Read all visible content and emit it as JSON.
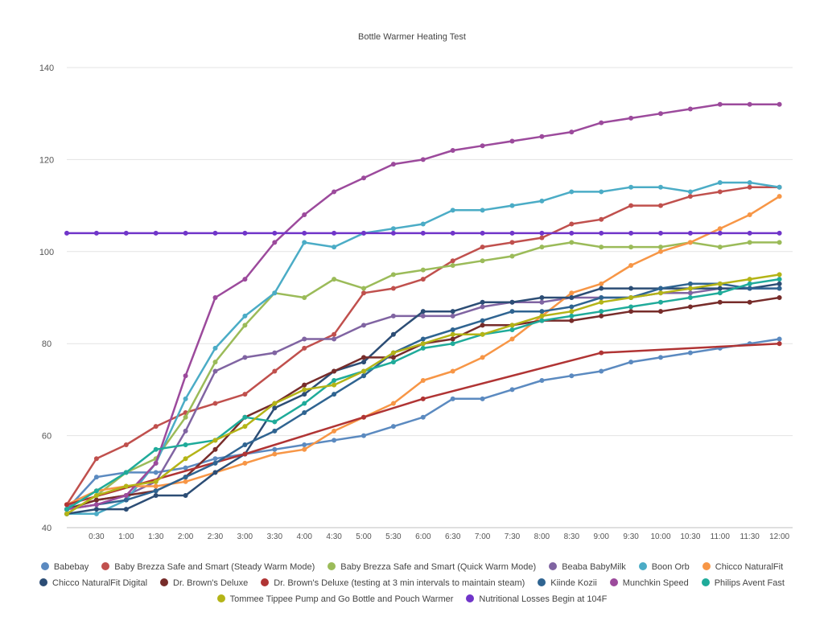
{
  "chart_data": {
    "type": "line",
    "title": "Bottle Warmer Heating Test",
    "xlabel": "",
    "ylabel": "",
    "ylim": [
      40,
      140
    ],
    "yticks": [
      40,
      60,
      80,
      100,
      120,
      140
    ],
    "grid": true,
    "legend_position": "bottom",
    "x": [
      "",
      "0:30",
      "1:00",
      "1:30",
      "2:00",
      "2:30",
      "3:00",
      "3:30",
      "4:00",
      "4:30",
      "5:00",
      "5:30",
      "6:00",
      "6:30",
      "7:00",
      "7:30",
      "8:00",
      "8:30",
      "9:00",
      "9:30",
      "10:00",
      "10:30",
      "11:00",
      "11:30",
      "12:00"
    ],
    "series": [
      {
        "name": "Babebay",
        "color": "#5b8ac0",
        "values": [
          44,
          51,
          52,
          52,
          53,
          55,
          56,
          57,
          58,
          59,
          60,
          62,
          64,
          68,
          68,
          70,
          72,
          73,
          74,
          76,
          77,
          78,
          79,
          80,
          81
        ]
      },
      {
        "name": "Baby Brezza Safe and Smart (Steady Warm Mode)",
        "color": "#c0504d",
        "values": [
          45,
          55,
          58,
          62,
          65,
          67,
          69,
          74,
          79,
          82,
          91,
          92,
          94,
          98,
          101,
          102,
          103,
          106,
          107,
          110,
          110,
          112,
          113,
          114,
          114
        ]
      },
      {
        "name": "Baby Brezza Safe and Smart (Quick Warm Mode)",
        "color": "#9bbb59",
        "values": [
          43,
          47,
          52,
          55,
          64,
          76,
          84,
          91,
          90,
          94,
          92,
          95,
          96,
          97,
          98,
          99,
          101,
          102,
          101,
          101,
          101,
          102,
          101,
          102,
          102
        ]
      },
      {
        "name": "Beaba BabyMilk",
        "color": "#8064a2",
        "values": [
          44,
          46,
          47,
          50,
          61,
          74,
          77,
          78,
          81,
          81,
          84,
          86,
          86,
          86,
          88,
          89,
          89,
          90,
          90,
          90,
          91,
          91,
          92,
          92,
          92
        ]
      },
      {
        "name": "Boon Orb",
        "color": "#4bacc6",
        "values": [
          43,
          43,
          46,
          54,
          68,
          79,
          86,
          91,
          102,
          101,
          104,
          105,
          106,
          109,
          109,
          110,
          111,
          113,
          113,
          114,
          114,
          113,
          115,
          115,
          114
        ]
      },
      {
        "name": "Chicco NaturalFit",
        "color": "#f79646",
        "values": [
          45,
          48,
          49,
          49,
          50,
          52,
          54,
          56,
          57,
          61,
          64,
          67,
          72,
          74,
          77,
          81,
          86,
          91,
          93,
          97,
          100,
          102,
          105,
          108,
          112
        ]
      },
      {
        "name": "Chicco NaturalFit Digital",
        "color": "#2c4d75",
        "values": [
          43,
          44,
          44,
          47,
          47,
          52,
          56,
          66,
          69,
          74,
          76,
          82,
          87,
          87,
          89,
          89,
          90,
          90,
          92,
          92,
          92,
          92,
          92,
          92,
          93
        ]
      },
      {
        "name": "Dr. Brown's Deluxe",
        "color": "#772c2a",
        "values": [
          44,
          46,
          47,
          48,
          51,
          57,
          64,
          67,
          71,
          74,
          77,
          77,
          80,
          81,
          84,
          84,
          85,
          85,
          86,
          87,
          87,
          88,
          89,
          89,
          90
        ]
      },
      {
        "name": "Dr. Brown's Deluxe (testing at 3 min intervals to maintain steam)",
        "color": "#b03434",
        "values": [
          45,
          null,
          null,
          null,
          null,
          null,
          56,
          null,
          null,
          null,
          64,
          null,
          68,
          null,
          null,
          null,
          null,
          null,
          78,
          null,
          null,
          null,
          null,
          null,
          80
        ]
      },
      {
        "name": "Kiinde Kozii",
        "color": "#2f6491",
        "values": [
          44,
          45,
          46,
          48,
          51,
          54,
          58,
          61,
          65,
          69,
          73,
          78,
          81,
          83,
          85,
          87,
          87,
          88,
          90,
          90,
          92,
          93,
          93,
          92,
          92
        ]
      },
      {
        "name": "Munchkin Speed",
        "color": "#9c4a9c",
        "values": [
          44,
          45,
          47,
          54,
          73,
          90,
          94,
          102,
          108,
          113,
          116,
          119,
          120,
          122,
          123,
          124,
          125,
          126,
          128,
          129,
          130,
          131,
          132,
          132,
          132
        ]
      },
      {
        "name": "Philips Avent Fast",
        "color": "#1fab9a",
        "values": [
          44,
          48,
          52,
          57,
          58,
          59,
          64,
          63,
          67,
          72,
          74,
          76,
          79,
          80,
          82,
          83,
          85,
          86,
          87,
          88,
          89,
          90,
          91,
          93,
          94
        ]
      },
      {
        "name": "Tommee Tippee Pump and Go Bottle and Pouch Warmer",
        "color": "#b4b417",
        "values": [
          43,
          47,
          49,
          50,
          55,
          59,
          62,
          67,
          70,
          71,
          74,
          78,
          80,
          82,
          82,
          84,
          86,
          87,
          89,
          90,
          91,
          92,
          93,
          94,
          95
        ]
      },
      {
        "name": "Nutritional Losses Begin at 104F",
        "color": "#7035c9",
        "values": [
          104,
          104,
          104,
          104,
          104,
          104,
          104,
          104,
          104,
          104,
          104,
          104,
          104,
          104,
          104,
          104,
          104,
          104,
          104,
          104,
          104,
          104,
          104,
          104,
          104
        ]
      }
    ]
  }
}
